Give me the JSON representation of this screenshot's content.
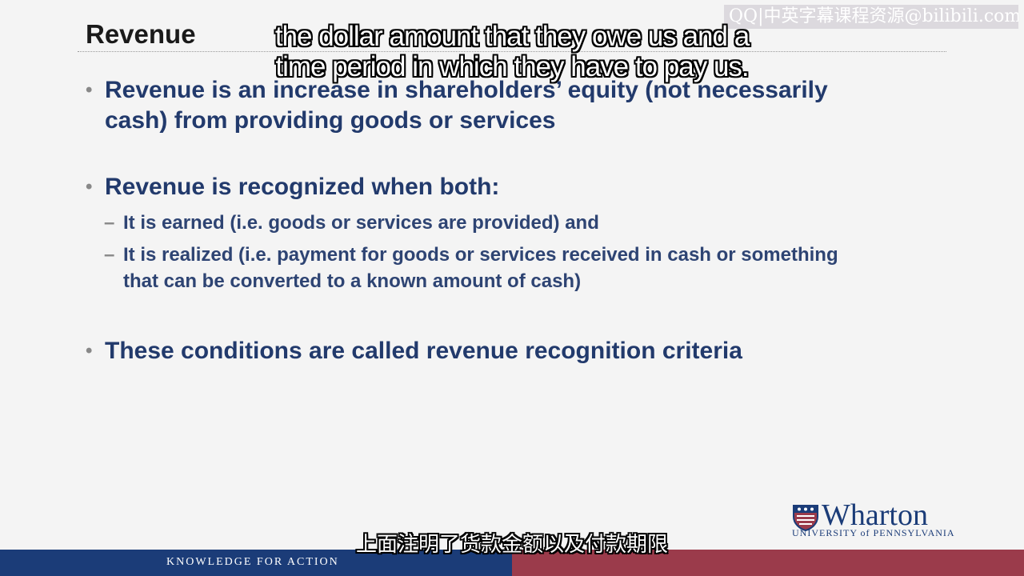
{
  "slide": {
    "title": "Revenue",
    "bullets": [
      {
        "lines": [
          "Revenue is an increase in shareholders’ equity (not necessarily",
          "cash) from providing goods or services"
        ]
      },
      {
        "lines": [
          "Revenue is recognized when both:"
        ],
        "subs": [
          {
            "lines": [
              "It is earned  (i.e. goods or services are provided) and"
            ]
          },
          {
            "lines": [
              "It is realized (i.e. payment for goods or services received in cash or something",
              "that can be converted to a known amount of cash)"
            ]
          }
        ]
      },
      {
        "lines": [
          "These conditions are called revenue recognition criteria"
        ]
      }
    ]
  },
  "captions": {
    "english": [
      "the dollar amount that they owe us and a",
      "time period in which they have to pay us."
    ],
    "chinese": "上面注明了货款金额以及付款期限"
  },
  "watermark": "QQ|中英字幕课程资源@bilibili.com",
  "footer": {
    "tagline": "KNOWLEDGE FOR ACTION",
    "colors": {
      "left": "#1b3c78",
      "right": "#9b3b4b"
    }
  },
  "logo": {
    "name": "Wharton",
    "university_line": "UNIVERSITY of PENNSYLVANIA",
    "shield_icon": "penn-shield-icon"
  }
}
